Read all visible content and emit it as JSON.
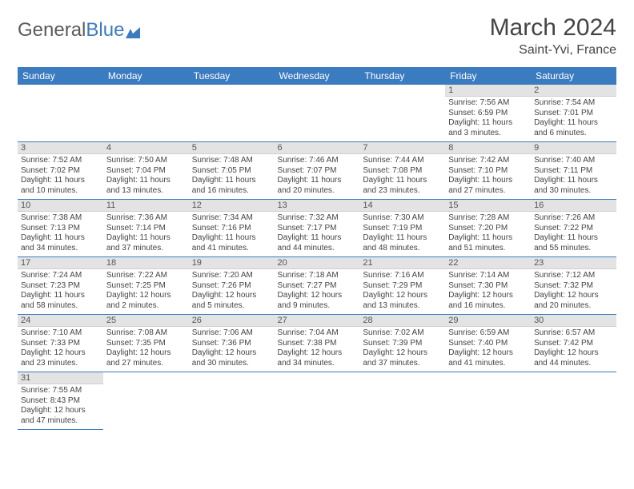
{
  "logo": {
    "word1": "General",
    "word2": "Blue"
  },
  "title": "March 2024",
  "location": "Saint-Yvi, France",
  "colors": {
    "header_bg": "#3b7bbf",
    "header_text": "#ffffff",
    "daynum_bg": "#e3e3e3",
    "row_border": "#3b7bbf",
    "body_text": "#444444",
    "page_bg": "#ffffff"
  },
  "typography": {
    "title_fontsize": 30,
    "location_fontsize": 16,
    "weekday_fontsize": 12,
    "daynum_fontsize": 11,
    "cell_fontsize": 10
  },
  "weekdays": [
    "Sunday",
    "Monday",
    "Tuesday",
    "Wednesday",
    "Thursday",
    "Friday",
    "Saturday"
  ],
  "calendar": {
    "type": "table",
    "first_weekday_index": 5,
    "weeks": [
      [
        null,
        null,
        null,
        null,
        null,
        {
          "day": "1",
          "sunrise": "Sunrise: 7:56 AM",
          "sunset": "Sunset: 6:59 PM",
          "daylight": "Daylight: 11 hours and 3 minutes."
        },
        {
          "day": "2",
          "sunrise": "Sunrise: 7:54 AM",
          "sunset": "Sunset: 7:01 PM",
          "daylight": "Daylight: 11 hours and 6 minutes."
        }
      ],
      [
        {
          "day": "3",
          "sunrise": "Sunrise: 7:52 AM",
          "sunset": "Sunset: 7:02 PM",
          "daylight": "Daylight: 11 hours and 10 minutes."
        },
        {
          "day": "4",
          "sunrise": "Sunrise: 7:50 AM",
          "sunset": "Sunset: 7:04 PM",
          "daylight": "Daylight: 11 hours and 13 minutes."
        },
        {
          "day": "5",
          "sunrise": "Sunrise: 7:48 AM",
          "sunset": "Sunset: 7:05 PM",
          "daylight": "Daylight: 11 hours and 16 minutes."
        },
        {
          "day": "6",
          "sunrise": "Sunrise: 7:46 AM",
          "sunset": "Sunset: 7:07 PM",
          "daylight": "Daylight: 11 hours and 20 minutes."
        },
        {
          "day": "7",
          "sunrise": "Sunrise: 7:44 AM",
          "sunset": "Sunset: 7:08 PM",
          "daylight": "Daylight: 11 hours and 23 minutes."
        },
        {
          "day": "8",
          "sunrise": "Sunrise: 7:42 AM",
          "sunset": "Sunset: 7:10 PM",
          "daylight": "Daylight: 11 hours and 27 minutes."
        },
        {
          "day": "9",
          "sunrise": "Sunrise: 7:40 AM",
          "sunset": "Sunset: 7:11 PM",
          "daylight": "Daylight: 11 hours and 30 minutes."
        }
      ],
      [
        {
          "day": "10",
          "sunrise": "Sunrise: 7:38 AM",
          "sunset": "Sunset: 7:13 PM",
          "daylight": "Daylight: 11 hours and 34 minutes."
        },
        {
          "day": "11",
          "sunrise": "Sunrise: 7:36 AM",
          "sunset": "Sunset: 7:14 PM",
          "daylight": "Daylight: 11 hours and 37 minutes."
        },
        {
          "day": "12",
          "sunrise": "Sunrise: 7:34 AM",
          "sunset": "Sunset: 7:16 PM",
          "daylight": "Daylight: 11 hours and 41 minutes."
        },
        {
          "day": "13",
          "sunrise": "Sunrise: 7:32 AM",
          "sunset": "Sunset: 7:17 PM",
          "daylight": "Daylight: 11 hours and 44 minutes."
        },
        {
          "day": "14",
          "sunrise": "Sunrise: 7:30 AM",
          "sunset": "Sunset: 7:19 PM",
          "daylight": "Daylight: 11 hours and 48 minutes."
        },
        {
          "day": "15",
          "sunrise": "Sunrise: 7:28 AM",
          "sunset": "Sunset: 7:20 PM",
          "daylight": "Daylight: 11 hours and 51 minutes."
        },
        {
          "day": "16",
          "sunrise": "Sunrise: 7:26 AM",
          "sunset": "Sunset: 7:22 PM",
          "daylight": "Daylight: 11 hours and 55 minutes."
        }
      ],
      [
        {
          "day": "17",
          "sunrise": "Sunrise: 7:24 AM",
          "sunset": "Sunset: 7:23 PM",
          "daylight": "Daylight: 11 hours and 58 minutes."
        },
        {
          "day": "18",
          "sunrise": "Sunrise: 7:22 AM",
          "sunset": "Sunset: 7:25 PM",
          "daylight": "Daylight: 12 hours and 2 minutes."
        },
        {
          "day": "19",
          "sunrise": "Sunrise: 7:20 AM",
          "sunset": "Sunset: 7:26 PM",
          "daylight": "Daylight: 12 hours and 5 minutes."
        },
        {
          "day": "20",
          "sunrise": "Sunrise: 7:18 AM",
          "sunset": "Sunset: 7:27 PM",
          "daylight": "Daylight: 12 hours and 9 minutes."
        },
        {
          "day": "21",
          "sunrise": "Sunrise: 7:16 AM",
          "sunset": "Sunset: 7:29 PM",
          "daylight": "Daylight: 12 hours and 13 minutes."
        },
        {
          "day": "22",
          "sunrise": "Sunrise: 7:14 AM",
          "sunset": "Sunset: 7:30 PM",
          "daylight": "Daylight: 12 hours and 16 minutes."
        },
        {
          "day": "23",
          "sunrise": "Sunrise: 7:12 AM",
          "sunset": "Sunset: 7:32 PM",
          "daylight": "Daylight: 12 hours and 20 minutes."
        }
      ],
      [
        {
          "day": "24",
          "sunrise": "Sunrise: 7:10 AM",
          "sunset": "Sunset: 7:33 PM",
          "daylight": "Daylight: 12 hours and 23 minutes."
        },
        {
          "day": "25",
          "sunrise": "Sunrise: 7:08 AM",
          "sunset": "Sunset: 7:35 PM",
          "daylight": "Daylight: 12 hours and 27 minutes."
        },
        {
          "day": "26",
          "sunrise": "Sunrise: 7:06 AM",
          "sunset": "Sunset: 7:36 PM",
          "daylight": "Daylight: 12 hours and 30 minutes."
        },
        {
          "day": "27",
          "sunrise": "Sunrise: 7:04 AM",
          "sunset": "Sunset: 7:38 PM",
          "daylight": "Daylight: 12 hours and 34 minutes."
        },
        {
          "day": "28",
          "sunrise": "Sunrise: 7:02 AM",
          "sunset": "Sunset: 7:39 PM",
          "daylight": "Daylight: 12 hours and 37 minutes."
        },
        {
          "day": "29",
          "sunrise": "Sunrise: 6:59 AM",
          "sunset": "Sunset: 7:40 PM",
          "daylight": "Daylight: 12 hours and 41 minutes."
        },
        {
          "day": "30",
          "sunrise": "Sunrise: 6:57 AM",
          "sunset": "Sunset: 7:42 PM",
          "daylight": "Daylight: 12 hours and 44 minutes."
        }
      ],
      [
        {
          "day": "31",
          "sunrise": "Sunrise: 7:55 AM",
          "sunset": "Sunset: 8:43 PM",
          "daylight": "Daylight: 12 hours and 47 minutes."
        },
        null,
        null,
        null,
        null,
        null,
        null
      ]
    ]
  }
}
